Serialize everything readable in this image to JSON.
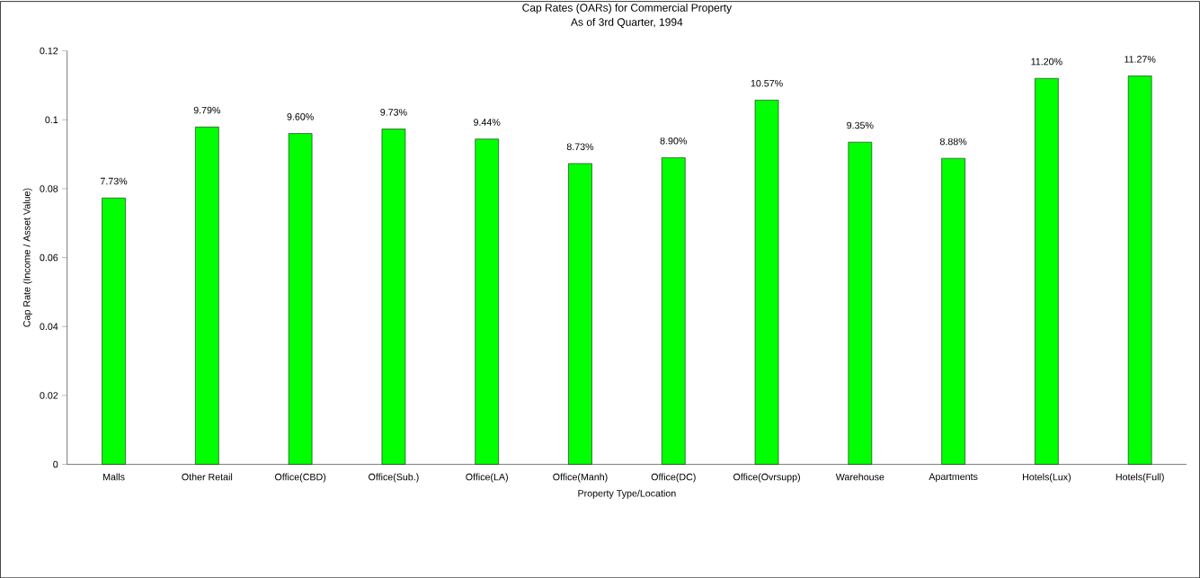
{
  "chart_data": {
    "type": "bar",
    "title": "Cap Rates (OARs) for Commercial Property",
    "subtitle": "As of 3rd Quarter, 1994",
    "xlabel": "Property Type/Location",
    "ylabel": "Cap Rate (Income / Asset Value)",
    "categories": [
      "Malls",
      "Other Retail",
      "Office(CBD)",
      "Office(Sub.)",
      "Office(LA)",
      "Office(Manh)",
      "Office(DC)",
      "Office(Ovrsupp)",
      "Warehouse",
      "Apartments",
      "Hotels(Lux)",
      "Hotels(Full)"
    ],
    "values": [
      0.0773,
      0.0979,
      0.096,
      0.0973,
      0.0944,
      0.0873,
      0.089,
      0.1057,
      0.0935,
      0.0888,
      0.112,
      0.1127
    ],
    "value_labels": [
      "7.73%",
      "9.79%",
      "9.60%",
      "9.73%",
      "9.44%",
      "8.73%",
      "8.90%",
      "10.57%",
      "9.35%",
      "8.88%",
      "11.20%",
      "11.27%"
    ],
    "color": "#00ff00",
    "ylim": [
      0,
      0.12
    ],
    "yticks": [
      0,
      0.02,
      0.04,
      0.06,
      0.08,
      0.1,
      0.12
    ],
    "grid": false
  }
}
